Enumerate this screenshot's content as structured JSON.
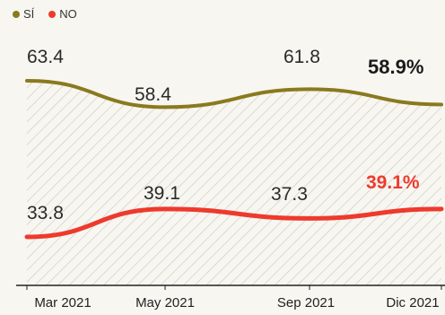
{
  "colors": {
    "si": "#8a7a1e",
    "no": "#ee3a2c",
    "hatch": "#c9c7c0",
    "axis": "#222222",
    "text": "#333333",
    "highlight_no": "#ee3a2c"
  },
  "legend": {
    "si_label": "SÍ",
    "no_label": "NO"
  },
  "chart_data": {
    "type": "line",
    "categories": [
      "Mar 2021",
      "May 2021",
      "Sep 2021",
      "Dic 2021"
    ],
    "series": [
      {
        "name": "SÍ",
        "values": [
          63.4,
          58.4,
          61.8,
          58.9
        ],
        "labels": [
          "63.4",
          "58.4",
          "61.8",
          "58.9%"
        ]
      },
      {
        "name": "NO",
        "values": [
          33.8,
          39.1,
          37.3,
          39.1
        ],
        "labels": [
          "33.8",
          "39.1",
          "37.3",
          "39.1%"
        ]
      }
    ],
    "ylim": [
      20,
      70
    ],
    "grid": false,
    "legend_position": "top-left",
    "title": "",
    "xlabel": "",
    "ylabel": ""
  }
}
